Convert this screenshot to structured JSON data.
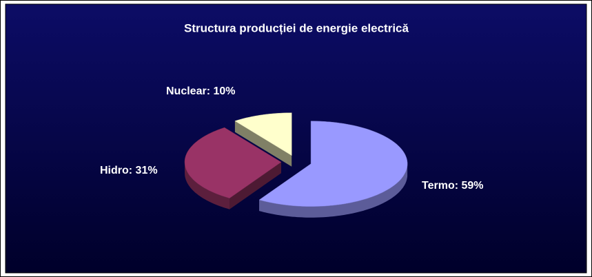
{
  "chart_data": {
    "type": "pie",
    "title": "Structura producției de energie electrică",
    "categories": [
      "Termo",
      "Hidro",
      "Nuclear"
    ],
    "values": [
      59,
      31,
      10
    ],
    "value_labels": [
      "Termo: 59%",
      "Hidro: 31%",
      "Nuclear: 10%"
    ],
    "colors": [
      "#9999ff",
      "#993366",
      "#ffffcc"
    ]
  }
}
